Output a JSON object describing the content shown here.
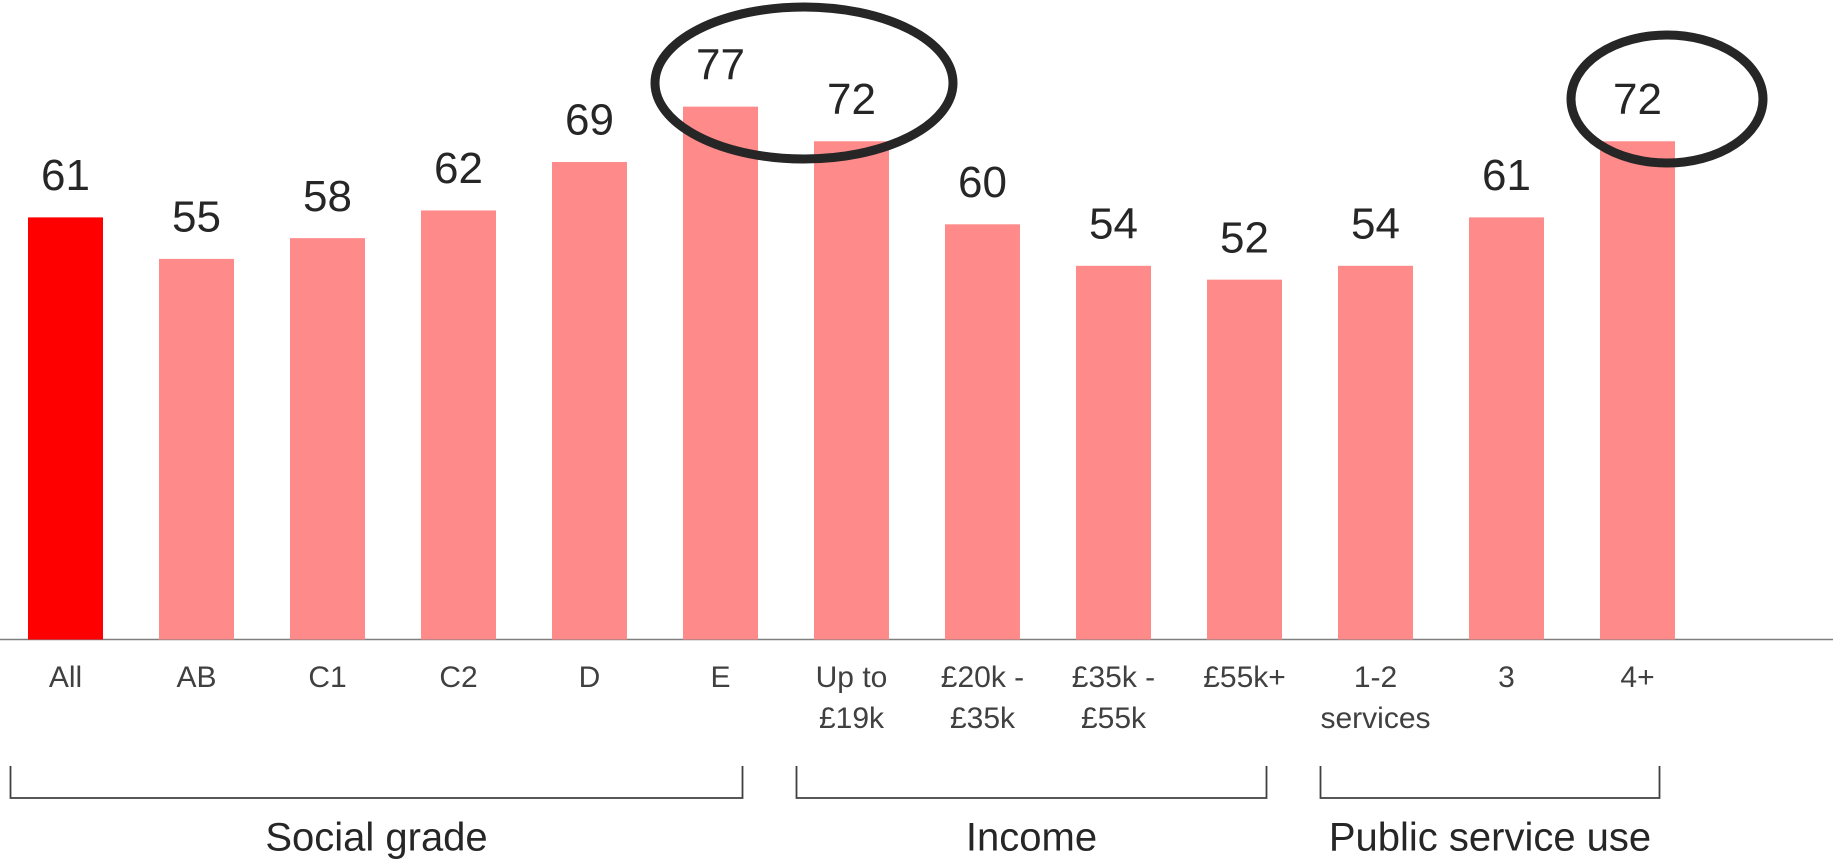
{
  "chart_data": {
    "type": "bar",
    "categories": [
      "All",
      "AB",
      "C1",
      "C2",
      "D",
      "E",
      "Up to\n£19k",
      "£20k -\n£35k",
      "£35k -\n£55k",
      "£55k+",
      "1-2\nservices",
      "3",
      "4+"
    ],
    "values": [
      61,
      55,
      58,
      62,
      69,
      77,
      72,
      60,
      54,
      52,
      54,
      61,
      72
    ],
    "colors": [
      "#ff0000",
      "#ff8a8a",
      "#ff8a8a",
      "#ff8a8a",
      "#ff8a8a",
      "#ff8a8a",
      "#ff8a8a",
      "#ff8a8a",
      "#ff8a8a",
      "#ff8a8a",
      "#ff8a8a",
      "#ff8a8a",
      "#ff8a8a"
    ],
    "groups": [
      {
        "label": "Social grade",
        "start": 0,
        "end": 5
      },
      {
        "label": "Income",
        "start": 6,
        "end": 9
      },
      {
        "label": "Public service use",
        "start": 10,
        "end": 12
      }
    ]
  }
}
